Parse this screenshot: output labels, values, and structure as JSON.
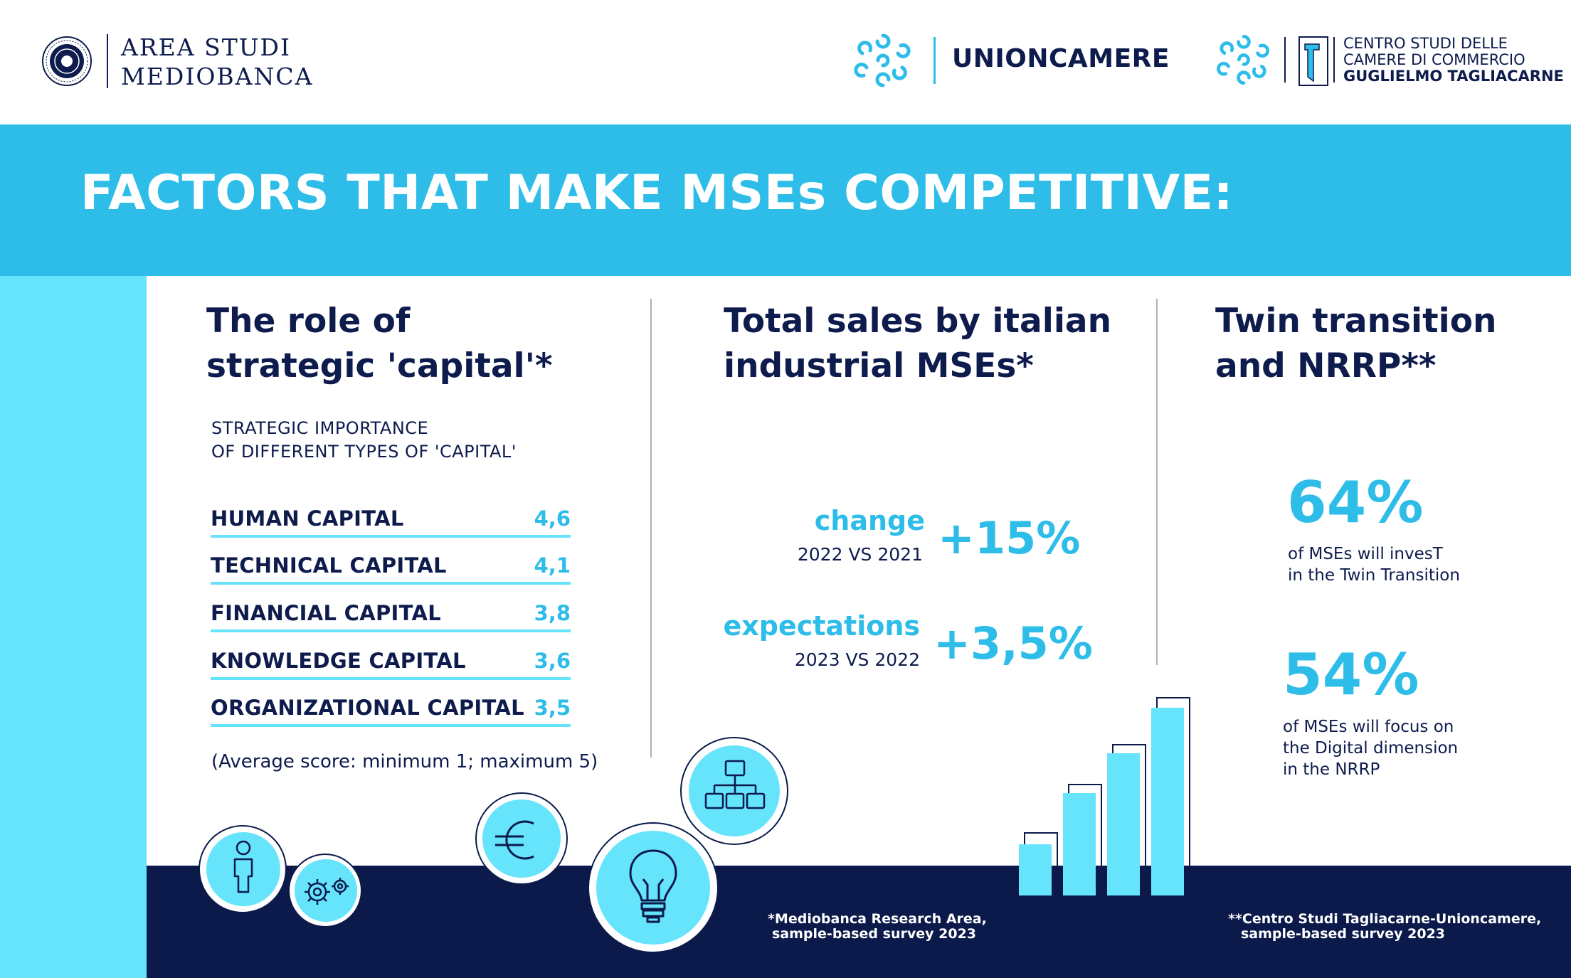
{
  "header": {
    "mediobanca_line1": "AREA STUDI",
    "mediobanca_line2": "MEDIOBANCA",
    "unioncamere": "UNIONCAMERE",
    "centro_line1": "CENTRO STUDI DELLE",
    "centro_line2": "CAMERE DI COMMERCIO",
    "centro_line3": "GUGLIELMO TAGLIACARNE"
  },
  "banner": {
    "title": "FACTORS THAT MAKE MSEs COMPETITIVE:"
  },
  "col1": {
    "title_line1": "The role of",
    "title_line2": "strategic 'capital'*",
    "subtitle_line1": "STRATEGIC  IMPORTANCE",
    "subtitle_line2": "OF DIFFERENT TYPES OF 'CAPITAL'",
    "items": [
      {
        "label": "HUMAN CAPITAL",
        "value": "4,6"
      },
      {
        "label": "TECHNICAL CAPITAL",
        "value": "4,1"
      },
      {
        "label": "FINANCIAL CAPITAL",
        "value": "3,8"
      },
      {
        "label": "KNOWLEDGE CAPITAL",
        "value": "3,6"
      },
      {
        "label": "ORGANIZATIONAL CAPITAL",
        "value": "3,5"
      }
    ],
    "note": "(Average score: minimum 1; maximum 5)"
  },
  "col2": {
    "title_line1": "Total sales by italian",
    "title_line2": "industrial MSEs*",
    "change_label": "change",
    "change_sub": "2022 VS 2021",
    "change_value": "+15%",
    "expect_label": "expectations",
    "expect_sub": "2023 VS 2022",
    "expect_value": "+3,5%"
  },
  "col3": {
    "title_line1": "Twin transition",
    "title_line2": "and NRRP**",
    "stat1_value": "64%",
    "stat1_line1": "of MSEs will invesT",
    "stat1_line2": "in the Twin Transition",
    "stat2_value": "54%",
    "stat2_line1": "of MSEs will focus on",
    "stat2_line2": "the Digital dimension",
    "stat2_line3": "in the NRRP"
  },
  "footnotes": {
    "f1_line1": "*Mediobanca Research Area,",
    "f1_line2": "sample-based survey 2023",
    "f2_line1": "**Centro Studi Tagliacarne-Unioncamere,",
    "f2_line2": "sample-based survey 2023"
  },
  "icons": {
    "seal": "mediobanca-seal-icon",
    "flower": "unioncamere-flower-icon",
    "person": "person-icon",
    "gears": "gears-icon",
    "euro": "euro-icon",
    "bulb": "lightbulb-icon",
    "org": "org-chart-icon",
    "bars": "bar-chart-illustration"
  },
  "colors": {
    "navy": "#0b1a4b",
    "cyan": "#2dbde8",
    "light_cyan": "#66e4fb"
  }
}
